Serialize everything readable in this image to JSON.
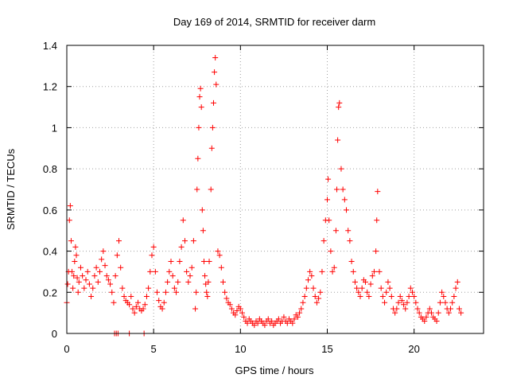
{
  "chart_data": {
    "type": "scatter",
    "title": "Day 169 of 2014, SRMTID for receiver darm",
    "xlabel": "GPS time / hours",
    "ylabel": "SRMTID / TECUs",
    "xlim": [
      0,
      24
    ],
    "ylim": [
      0,
      1.4
    ],
    "xticks": [
      0,
      5,
      10,
      15,
      20
    ],
    "xtick_labels": [
      "0",
      "5",
      "10",
      "15",
      "20"
    ],
    "yticks": [
      0,
      0.2,
      0.4,
      0.6,
      0.8,
      1.0,
      1.2,
      1.4
    ],
    "ytick_labels": [
      "0",
      "0.2",
      "0.4",
      "0.6",
      "0.8",
      "1",
      "1.2",
      "1.4"
    ],
    "grid": true,
    "marker": "+",
    "color": "#ff0000",
    "series": [
      {
        "name": "SRMTID",
        "points": [
          [
            0.0,
            0.15
          ],
          [
            0.05,
            0.24
          ],
          [
            0.1,
            0.3
          ],
          [
            0.15,
            0.55
          ],
          [
            0.2,
            0.62
          ],
          [
            0.25,
            0.45
          ],
          [
            0.3,
            0.3
          ],
          [
            0.35,
            0.22
          ],
          [
            0.4,
            0.28
          ],
          [
            0.45,
            0.35
          ],
          [
            0.5,
            0.42
          ],
          [
            0.55,
            0.38
          ],
          [
            0.6,
            0.27
          ],
          [
            0.65,
            0.2
          ],
          [
            0.7,
            0.25
          ],
          [
            0.8,
            0.32
          ],
          [
            0.9,
            0.28
          ],
          [
            1.0,
            0.22
          ],
          [
            1.1,
            0.26
          ],
          [
            1.2,
            0.3
          ],
          [
            1.3,
            0.24
          ],
          [
            1.4,
            0.18
          ],
          [
            1.5,
            0.22
          ],
          [
            1.6,
            0.28
          ],
          [
            1.7,
            0.32
          ],
          [
            1.8,
            0.25
          ],
          [
            1.9,
            0.3
          ],
          [
            2.0,
            0.36
          ],
          [
            2.1,
            0.4
          ],
          [
            2.2,
            0.33
          ],
          [
            2.3,
            0.28
          ],
          [
            2.4,
            0.26
          ],
          [
            2.5,
            0.24
          ],
          [
            2.6,
            0.2
          ],
          [
            2.7,
            0.15
          ],
          [
            2.8,
            0.28
          ],
          [
            2.9,
            0.38
          ],
          [
            3.0,
            0.45
          ],
          [
            3.1,
            0.32
          ],
          [
            3.2,
            0.22
          ],
          [
            3.3,
            0.18
          ],
          [
            3.4,
            0.16
          ],
          [
            3.5,
            0.15
          ],
          [
            3.6,
            0.14
          ],
          [
            3.7,
            0.18
          ],
          [
            3.8,
            0.12
          ],
          [
            3.9,
            0.1
          ],
          [
            4.0,
            0.13
          ],
          [
            4.1,
            0.15
          ],
          [
            4.2,
            0.12
          ],
          [
            4.3,
            0.11
          ],
          [
            4.4,
            0.12
          ],
          [
            4.5,
            0.14
          ],
          [
            4.6,
            0.18
          ],
          [
            4.7,
            0.22
          ],
          [
            4.8,
            0.3
          ],
          [
            4.9,
            0.38
          ],
          [
            5.0,
            0.42
          ],
          [
            5.1,
            0.3
          ],
          [
            5.2,
            0.2
          ],
          [
            5.3,
            0.16
          ],
          [
            5.4,
            0.13
          ],
          [
            5.5,
            0.12
          ],
          [
            5.6,
            0.15
          ],
          [
            5.7,
            0.2
          ],
          [
            5.8,
            0.25
          ],
          [
            5.9,
            0.3
          ],
          [
            6.0,
            0.35
          ],
          [
            6.1,
            0.28
          ],
          [
            6.2,
            0.22
          ],
          [
            6.3,
            0.2
          ],
          [
            6.4,
            0.25
          ],
          [
            6.5,
            0.35
          ],
          [
            6.6,
            0.42
          ],
          [
            6.7,
            0.55
          ],
          [
            6.8,
            0.45
          ],
          [
            6.9,
            0.3
          ],
          [
            7.0,
            0.25
          ],
          [
            7.1,
            0.28
          ],
          [
            7.2,
            0.32
          ],
          [
            7.3,
            0.45
          ],
          [
            7.4,
            0.12
          ],
          [
            7.45,
            0.2
          ],
          [
            7.5,
            0.7
          ],
          [
            7.55,
            0.85
          ],
          [
            7.6,
            1.0
          ],
          [
            7.65,
            1.15
          ],
          [
            7.7,
            1.19
          ],
          [
            7.75,
            1.1
          ],
          [
            7.8,
            0.6
          ],
          [
            7.85,
            0.5
          ],
          [
            7.9,
            0.35
          ],
          [
            7.95,
            0.28
          ],
          [
            8.0,
            0.24
          ],
          [
            8.05,
            0.2
          ],
          [
            8.1,
            0.18
          ],
          [
            8.15,
            0.25
          ],
          [
            8.2,
            0.35
          ],
          [
            8.3,
            0.7
          ],
          [
            8.35,
            0.9
          ],
          [
            8.4,
            1.0
          ],
          [
            8.45,
            1.12
          ],
          [
            8.5,
            1.27
          ],
          [
            8.55,
            1.34
          ],
          [
            8.6,
            1.21
          ],
          [
            8.7,
            0.4
          ],
          [
            8.8,
            0.38
          ],
          [
            8.9,
            0.32
          ],
          [
            9.0,
            0.25
          ],
          [
            9.1,
            0.2
          ],
          [
            9.2,
            0.17
          ],
          [
            9.3,
            0.15
          ],
          [
            9.4,
            0.14
          ],
          [
            9.5,
            0.12
          ],
          [
            9.6,
            0.1
          ],
          [
            9.7,
            0.09
          ],
          [
            9.8,
            0.11
          ],
          [
            9.9,
            0.13
          ],
          [
            10.0,
            0.12
          ],
          [
            10.1,
            0.1
          ],
          [
            10.2,
            0.08
          ],
          [
            10.3,
            0.06
          ],
          [
            10.4,
            0.05
          ],
          [
            10.5,
            0.07
          ],
          [
            10.6,
            0.06
          ],
          [
            10.7,
            0.05
          ],
          [
            10.8,
            0.04
          ],
          [
            10.9,
            0.06
          ],
          [
            11.0,
            0.05
          ],
          [
            11.1,
            0.07
          ],
          [
            11.2,
            0.06
          ],
          [
            11.3,
            0.05
          ],
          [
            11.4,
            0.04
          ],
          [
            11.5,
            0.06
          ],
          [
            11.6,
            0.07
          ],
          [
            11.7,
            0.05
          ],
          [
            11.8,
            0.06
          ],
          [
            11.9,
            0.04
          ],
          [
            12.0,
            0.05
          ],
          [
            12.1,
            0.06
          ],
          [
            12.2,
            0.07
          ],
          [
            12.3,
            0.05
          ],
          [
            12.4,
            0.06
          ],
          [
            12.5,
            0.08
          ],
          [
            12.6,
            0.06
          ],
          [
            12.7,
            0.05
          ],
          [
            12.8,
            0.07
          ],
          [
            12.9,
            0.06
          ],
          [
            13.0,
            0.05
          ],
          [
            13.1,
            0.07
          ],
          [
            13.2,
            0.09
          ],
          [
            13.3,
            0.08
          ],
          [
            13.4,
            0.1
          ],
          [
            13.5,
            0.12
          ],
          [
            13.6,
            0.15
          ],
          [
            13.7,
            0.18
          ],
          [
            13.8,
            0.22
          ],
          [
            13.9,
            0.26
          ],
          [
            14.0,
            0.3
          ],
          [
            14.1,
            0.28
          ],
          [
            14.2,
            0.22
          ],
          [
            14.3,
            0.18
          ],
          [
            14.4,
            0.15
          ],
          [
            14.5,
            0.17
          ],
          [
            14.6,
            0.2
          ],
          [
            14.7,
            0.3
          ],
          [
            14.8,
            0.45
          ],
          [
            14.9,
            0.55
          ],
          [
            15.0,
            0.65
          ],
          [
            15.05,
            0.75
          ],
          [
            15.1,
            0.55
          ],
          [
            15.2,
            0.4
          ],
          [
            15.3,
            0.3
          ],
          [
            15.4,
            0.32
          ],
          [
            15.5,
            0.5
          ],
          [
            15.55,
            0.7
          ],
          [
            15.6,
            0.94
          ],
          [
            15.65,
            1.1
          ],
          [
            15.7,
            1.12
          ],
          [
            15.8,
            0.8
          ],
          [
            15.9,
            0.7
          ],
          [
            16.0,
            0.65
          ],
          [
            16.1,
            0.6
          ],
          [
            16.2,
            0.5
          ],
          [
            16.3,
            0.45
          ],
          [
            16.4,
            0.35
          ],
          [
            16.5,
            0.3
          ],
          [
            16.6,
            0.25
          ],
          [
            16.7,
            0.22
          ],
          [
            16.8,
            0.2
          ],
          [
            16.9,
            0.18
          ],
          [
            17.0,
            0.22
          ],
          [
            17.1,
            0.26
          ],
          [
            17.2,
            0.25
          ],
          [
            17.3,
            0.2
          ],
          [
            17.4,
            0.18
          ],
          [
            17.5,
            0.24
          ],
          [
            17.6,
            0.28
          ],
          [
            17.7,
            0.3
          ],
          [
            17.8,
            0.4
          ],
          [
            17.85,
            0.55
          ],
          [
            17.9,
            0.69
          ],
          [
            18.0,
            0.3
          ],
          [
            18.1,
            0.22
          ],
          [
            18.2,
            0.18
          ],
          [
            18.3,
            0.15
          ],
          [
            18.4,
            0.2
          ],
          [
            18.5,
            0.25
          ],
          [
            18.6,
            0.22
          ],
          [
            18.7,
            0.18
          ],
          [
            18.8,
            0.12
          ],
          [
            18.9,
            0.1
          ],
          [
            19.0,
            0.12
          ],
          [
            19.1,
            0.15
          ],
          [
            19.2,
            0.18
          ],
          [
            19.3,
            0.16
          ],
          [
            19.4,
            0.14
          ],
          [
            19.5,
            0.12
          ],
          [
            19.6,
            0.15
          ],
          [
            19.7,
            0.18
          ],
          [
            19.8,
            0.22
          ],
          [
            19.9,
            0.2
          ],
          [
            20.0,
            0.18
          ],
          [
            20.1,
            0.15
          ],
          [
            20.2,
            0.12
          ],
          [
            20.3,
            0.1
          ],
          [
            20.4,
            0.08
          ],
          [
            20.5,
            0.07
          ],
          [
            20.6,
            0.06
          ],
          [
            20.7,
            0.08
          ],
          [
            20.8,
            0.1
          ],
          [
            20.9,
            0.12
          ],
          [
            21.0,
            0.1
          ],
          [
            21.1,
            0.08
          ],
          [
            21.2,
            0.07
          ],
          [
            21.3,
            0.06
          ],
          [
            21.4,
            0.1
          ],
          [
            21.5,
            0.15
          ],
          [
            21.6,
            0.2
          ],
          [
            21.7,
            0.18
          ],
          [
            21.8,
            0.15
          ],
          [
            21.9,
            0.12
          ],
          [
            22.0,
            0.1
          ],
          [
            22.1,
            0.12
          ],
          [
            22.2,
            0.15
          ],
          [
            22.3,
            0.18
          ],
          [
            22.4,
            0.22
          ],
          [
            22.5,
            0.25
          ],
          [
            22.6,
            0.12
          ],
          [
            22.7,
            0.1
          ],
          [
            2.75,
            0.0
          ],
          [
            2.85,
            0.0
          ],
          [
            2.95,
            0.0
          ],
          [
            3.6,
            0.0
          ],
          [
            4.45,
            0.0
          ]
        ]
      }
    ]
  }
}
